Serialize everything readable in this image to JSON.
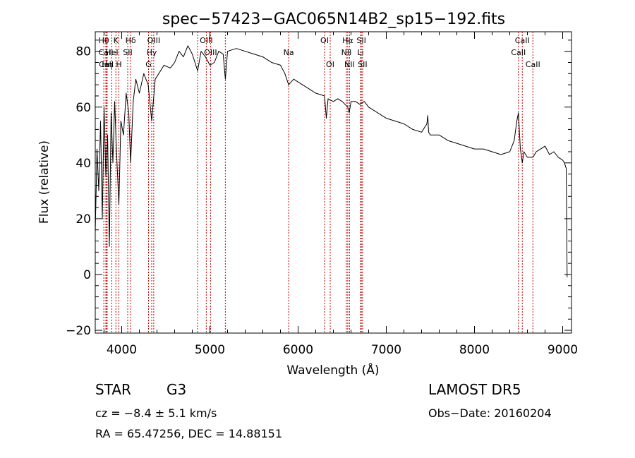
{
  "chart_data": {
    "type": "line",
    "title": "spec−57423−GAC065N14B2_sp15−192.fits",
    "xlabel": "Wavelength (Å)",
    "ylabel": "Flux (relative)",
    "xlim": [
      3700,
      9100
    ],
    "ylim": [
      -21,
      87
    ],
    "x_ticks": [
      4000,
      5000,
      6000,
      7000,
      8000,
      9000
    ],
    "y_ticks": [
      -20,
      0,
      20,
      40,
      60,
      80
    ],
    "x_tick_labels": [
      "4000",
      "5000",
      "6000",
      "7000",
      "8000",
      "9000"
    ],
    "y_tick_labels": [
      "−20",
      "0",
      "20",
      "40",
      "60",
      "80"
    ],
    "grid": false,
    "line_color": "#000000",
    "marker_color": "#cc0000",
    "series": [
      {
        "x": [
          3700,
          3720,
          3740,
          3760,
          3780,
          3800,
          3820,
          3840,
          3860,
          3880,
          3900,
          3920,
          3940,
          3968,
          3990,
          4020,
          4050,
          4080,
          4101,
          4130,
          4160,
          4200,
          4250,
          4300,
          4340,
          4380,
          4420,
          4480,
          4550,
          4600,
          4650,
          4700,
          4750,
          4800,
          4861,
          4900,
          4950,
          5000,
          5050,
          5100,
          5150,
          5175,
          5200,
          5300,
          5400,
          5500,
          5600,
          5700,
          5800,
          5850,
          5893,
          5950,
          6000,
          6100,
          6200,
          6300,
          6320,
          6340,
          6400,
          6450,
          6500,
          6563,
          6580,
          6600,
          6650,
          6700,
          6750,
          6800,
          6900,
          7000,
          7100,
          7200,
          7300,
          7400,
          7460,
          7470,
          7480,
          7500,
          7600,
          7700,
          7800,
          7900,
          8000,
          8100,
          8200,
          8300,
          8400,
          8450,
          8480,
          8498,
          8520,
          8542,
          8560,
          8600,
          8662,
          8700,
          8750,
          8800,
          8850,
          8900,
          8950,
          9000,
          9020,
          9040,
          9050
        ],
        "y": [
          15,
          45,
          30,
          55,
          20,
          60,
          35,
          50,
          10,
          58,
          40,
          62,
          45,
          25,
          55,
          50,
          65,
          58,
          40,
          62,
          70,
          65,
          72,
          68,
          55,
          70,
          72,
          75,
          74,
          76,
          80,
          78,
          82,
          79,
          73,
          80,
          78,
          75,
          76,
          80,
          79,
          70,
          80,
          81,
          80,
          79,
          78,
          76,
          75,
          72,
          68,
          70,
          69,
          67,
          65,
          64,
          56,
          63,
          62,
          63,
          62,
          60,
          58,
          62,
          62,
          61,
          62,
          60,
          58,
          56,
          55,
          54,
          52,
          51,
          54,
          57,
          51,
          50,
          50,
          48,
          47,
          46,
          45,
          45,
          44,
          43,
          44,
          48,
          55,
          58,
          45,
          40,
          44,
          42,
          42,
          44,
          45,
          46,
          43,
          44,
          42,
          41,
          40,
          38,
          -1
        ]
      }
    ],
    "spectral_lines": [
      {
        "label": "Hθ",
        "x": 3797,
        "row": 0
      },
      {
        "label": "CaII",
        "x": 3820,
        "row": 1
      },
      {
        "label": "CaII",
        "x": 3825,
        "row": 2
      },
      {
        "label": "Hη",
        "x": 3835,
        "row": 2
      },
      {
        "label": "HeI",
        "x": 3888,
        "row": 1
      },
      {
        "label": "H",
        "x": 3968,
        "row": 2
      },
      {
        "label": "K",
        "x": 3934,
        "row": 0
      },
      {
        "label": "SII",
        "x": 4068,
        "row": 1
      },
      {
        "label": "Hδ",
        "x": 4101,
        "row": 0
      },
      {
        "label": "OIII",
        "x": 4363,
        "row": 0
      },
      {
        "label": "Hγ",
        "x": 4340,
        "row": 1
      },
      {
        "label": "G",
        "x": 4304,
        "row": 2
      },
      {
        "label": "OIII",
        "x": 4959,
        "row": 0
      },
      {
        "label": "OIII",
        "x": 5007,
        "row": 1
      },
      {
        "label": "Na",
        "x": 5893,
        "row": 1
      },
      {
        "label": "OI",
        "x": 6300,
        "row": 0
      },
      {
        "label": "OI",
        "x": 6364,
        "row": 2
      },
      {
        "label": "Hα",
        "x": 6563,
        "row": 0
      },
      {
        "label": "NII",
        "x": 6548,
        "row": 1
      },
      {
        "label": "NII",
        "x": 6583,
        "row": 2
      },
      {
        "label": "SII",
        "x": 6717,
        "row": 0
      },
      {
        "label": "Li",
        "x": 6708,
        "row": 1
      },
      {
        "label": "SII",
        "x": 6731,
        "row": 2
      },
      {
        "label": "CaII",
        "x": 8542,
        "row": 0
      },
      {
        "label": "CaII",
        "x": 8498,
        "row": 1
      },
      {
        "label": "CaII",
        "x": 8662,
        "row": 2
      }
    ],
    "extra_line_markers": [
      4861,
      5175
    ],
    "info": {
      "object_class": "STAR",
      "subclass": "G3",
      "cz": "cz = −8.4 ± 5.1 km/s",
      "coords": "RA =  65.47256, DEC =  14.88151",
      "survey": "LAMOST DR5",
      "obs_date": "Obs−Date: 20160204"
    }
  }
}
